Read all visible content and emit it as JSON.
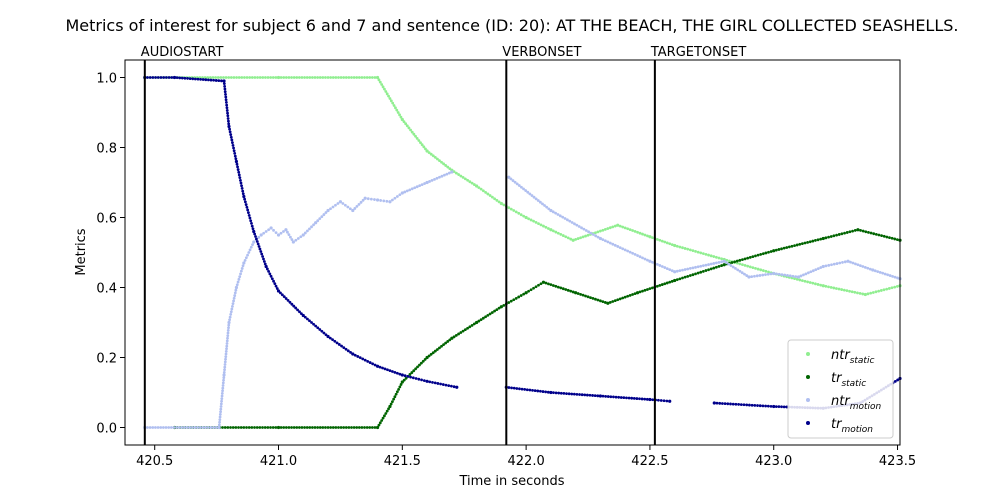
{
  "chart_data": {
    "type": "scatter",
    "title": "Metrics of interest for subject 6 and 7 and sentence (ID: 20): AT THE BEACH, THE GIRL COLLECTED SEASHELLS.",
    "xlabel": "Time in seconds",
    "ylabel": "Metrics",
    "xlim": [
      420.38,
      423.51
    ],
    "ylim": [
      -0.05,
      1.05
    ],
    "x_ticks": [
      420.5,
      421.0,
      421.5,
      422.0,
      422.5,
      423.0,
      423.5
    ],
    "x_tick_labels": [
      "420.5",
      "421.0",
      "421.5",
      "422.0",
      "422.5",
      "423.0",
      "423.5"
    ],
    "y_ticks": [
      0.0,
      0.2,
      0.4,
      0.6,
      0.8,
      1.0
    ],
    "y_tick_labels": [
      "0.0",
      "0.2",
      "0.4",
      "0.6",
      "0.8",
      "1.0"
    ],
    "grid": false,
    "legend_position": "lower-right",
    "events": [
      {
        "label": "AUDIOSTART",
        "x": 420.46
      },
      {
        "label": "VERBONSET",
        "x": 421.92
      },
      {
        "label": "TARGETONSET",
        "x": 422.52
      }
    ],
    "series": [
      {
        "name": "ntr_static",
        "legend_main": "ntr",
        "legend_sub": "static",
        "color": "#90ee90",
        "points": [
          [
            420.46,
            1.0
          ],
          [
            421.0,
            1.0
          ],
          [
            421.4,
            1.0
          ],
          [
            421.5,
            0.88
          ],
          [
            421.6,
            0.79
          ],
          [
            421.7,
            0.735
          ],
          [
            421.8,
            0.69
          ],
          [
            421.9,
            0.64
          ],
          [
            422.0,
            0.6
          ],
          [
            422.1,
            0.565
          ],
          [
            422.19,
            0.535
          ],
          [
            422.37,
            0.578
          ],
          [
            422.5,
            0.545
          ],
          [
            422.6,
            0.52
          ],
          [
            422.8,
            0.48
          ],
          [
            423.0,
            0.44
          ],
          [
            423.2,
            0.405
          ],
          [
            423.37,
            0.38
          ],
          [
            423.51,
            0.405
          ]
        ]
      },
      {
        "name": "tr_static",
        "legend_main": "tr",
        "legend_sub": "static",
        "color": "#006400",
        "points": [
          [
            420.58,
            0.0
          ],
          [
            421.0,
            0.0
          ],
          [
            421.4,
            0.0
          ],
          [
            421.45,
            0.06
          ],
          [
            421.5,
            0.13
          ],
          [
            421.6,
            0.2
          ],
          [
            421.7,
            0.255
          ],
          [
            421.8,
            0.3
          ],
          [
            421.9,
            0.345
          ],
          [
            422.0,
            0.385
          ],
          [
            422.07,
            0.415
          ],
          [
            422.2,
            0.385
          ],
          [
            422.33,
            0.355
          ],
          [
            422.45,
            0.385
          ],
          [
            422.6,
            0.42
          ],
          [
            422.8,
            0.465
          ],
          [
            423.0,
            0.505
          ],
          [
            423.2,
            0.54
          ],
          [
            423.34,
            0.565
          ],
          [
            423.51,
            0.535
          ]
        ]
      },
      {
        "name": "ntr_motion",
        "legend_main": "ntr",
        "legend_sub": "motion",
        "color": "#b0bff0",
        "points": [
          [
            420.46,
            0.0
          ],
          [
            420.76,
            0.0
          ],
          [
            420.78,
            0.15
          ],
          [
            420.8,
            0.3
          ],
          [
            420.83,
            0.4
          ],
          [
            420.86,
            0.47
          ],
          [
            420.9,
            0.53
          ],
          [
            420.93,
            0.55
          ],
          [
            420.97,
            0.57
          ],
          [
            421.0,
            0.55
          ],
          [
            421.03,
            0.565
          ],
          [
            421.06,
            0.53
          ],
          [
            421.1,
            0.55
          ],
          [
            421.15,
            0.585
          ],
          [
            421.2,
            0.62
          ],
          [
            421.25,
            0.645
          ],
          [
            421.3,
            0.62
          ],
          [
            421.35,
            0.655
          ],
          [
            421.4,
            0.65
          ],
          [
            421.45,
            0.645
          ],
          [
            421.5,
            0.67
          ],
          [
            421.6,
            0.7
          ],
          [
            421.7,
            0.73
          ],
          [
            421.93,
            0.715
          ],
          [
            422.1,
            0.62
          ],
          [
            422.3,
            0.54
          ],
          [
            422.5,
            0.475
          ],
          [
            422.6,
            0.445
          ],
          [
            422.8,
            0.475
          ],
          [
            422.9,
            0.43
          ],
          [
            423.0,
            0.44
          ],
          [
            423.1,
            0.43
          ],
          [
            423.2,
            0.46
          ],
          [
            423.3,
            0.475
          ],
          [
            423.4,
            0.45
          ],
          [
            423.51,
            0.425
          ]
        ]
      },
      {
        "name": "tr_motion",
        "legend_main": "tr",
        "legend_sub": "motion",
        "color": "#00008b",
        "points": [
          [
            420.46,
            1.0
          ],
          [
            420.58,
            1.0
          ],
          [
            420.78,
            0.99
          ],
          [
            420.8,
            0.86
          ],
          [
            420.83,
            0.76
          ],
          [
            420.86,
            0.66
          ],
          [
            420.9,
            0.56
          ],
          [
            420.95,
            0.46
          ],
          [
            421.0,
            0.39
          ],
          [
            421.1,
            0.32
          ],
          [
            421.2,
            0.26
          ],
          [
            421.3,
            0.21
          ],
          [
            421.4,
            0.175
          ],
          [
            421.5,
            0.15
          ],
          [
            421.6,
            0.132
          ],
          [
            421.72,
            0.115
          ],
          [
            421.92,
            0.115
          ],
          [
            422.1,
            0.1
          ],
          [
            422.3,
            0.09
          ],
          [
            422.5,
            0.08
          ],
          [
            422.58,
            0.075
          ],
          [
            422.76,
            0.07
          ],
          [
            423.0,
            0.06
          ],
          [
            423.2,
            0.055
          ],
          [
            423.35,
            0.07
          ],
          [
            423.51,
            0.14
          ]
        ]
      }
    ]
  }
}
